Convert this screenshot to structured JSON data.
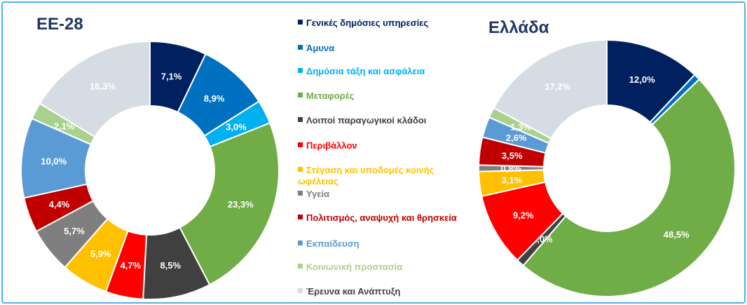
{
  "chart_data": [
    {
      "type": "donut",
      "title": "ΕΕ-28",
      "categories": [
        "Γενικές δημόσιες υπηρεσίες",
        "Άμυνα",
        "Δημόσια τάξη και ασφάλεια",
        "Μεταφορές",
        "Λοιποί παραγωγικοί κλάδοι",
        "Περιβάλλον",
        "Στέγαση και υποδομές κοινής ωφέλειας",
        "Υγεία",
        "Πολιτισμός, αναψυχή και θρησκεία",
        "Εκπαίδευση",
        "Κοινωνική προστασία",
        "Έρευνα και Ανάπτυξη"
      ],
      "colors": [
        "#002060",
        "#0070c0",
        "#00b0f0",
        "#70ad47",
        "#404040",
        "#ff0000",
        "#ffc000",
        "#7f7f7f",
        "#c00000",
        "#5b9bd5",
        "#a9d18e",
        "#d6dce4"
      ],
      "values": [
        7.1,
        8.9,
        3.0,
        23.3,
        8.5,
        4.7,
        5.9,
        5.7,
        4.4,
        10.0,
        2.1,
        16.3
      ],
      "value_labels": [
        "7,1%",
        "8,9%",
        "3,0%",
        "23,3%",
        "8,5%",
        "4,7%",
        "5,9%",
        "5,7%",
        "4,4%",
        "10,0%",
        "2,1%",
        "16,3%"
      ]
    },
    {
      "type": "donut",
      "title": "Ελλάδα",
      "values": [
        12.0,
        0.8,
        0,
        48.5,
        1.0,
        9.2,
        3.1,
        0.8,
        3.5,
        2.6,
        1.3,
        17.2
      ],
      "value_labels": [
        "12,0%",
        null,
        null,
        "48,5%",
        "1,0%",
        "9,2%",
        "3,1%",
        "0,8%",
        "3,5%",
        "2,6%",
        "1,3%",
        "17,2%"
      ]
    }
  ]
}
